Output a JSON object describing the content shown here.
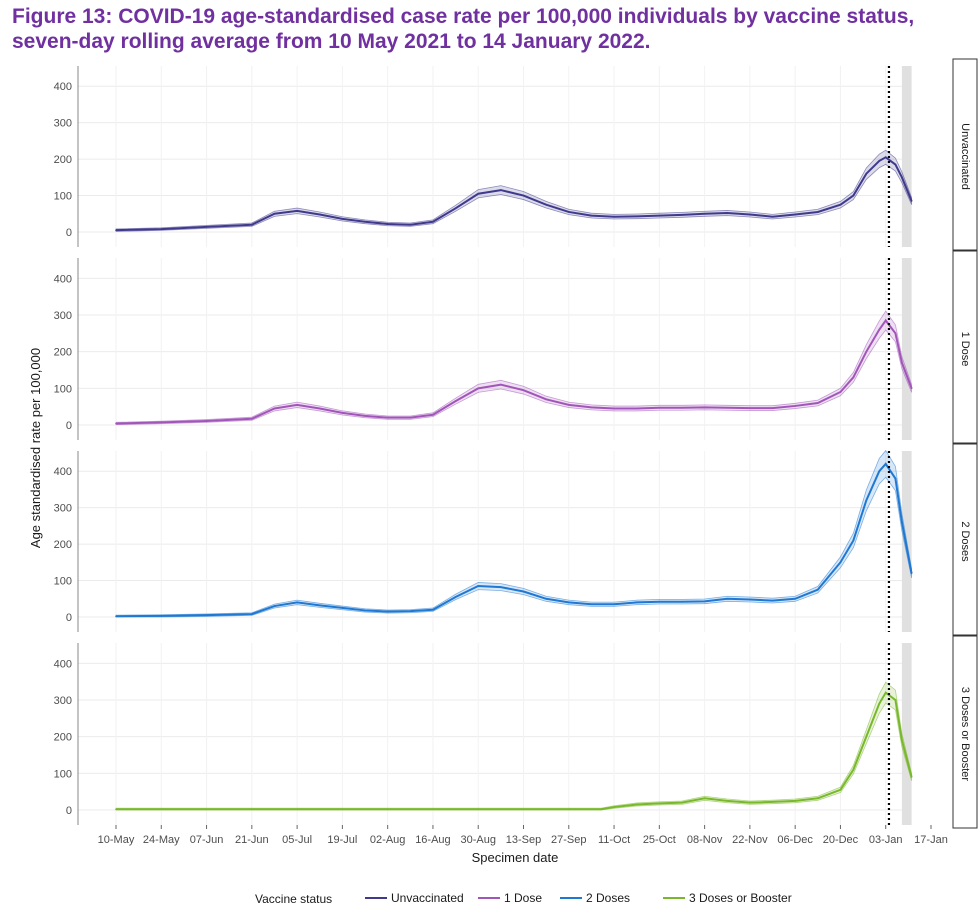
{
  "figure": {
    "title": "Figure 13: COVID-19 age-standardised case rate per 100,000 individuals by vaccine status, seven-day rolling average from 10 May 2021 to 14 January 2022."
  },
  "chart_data": {
    "type": "line",
    "title": "",
    "xlabel": "Specimen date",
    "ylabel": "Age standardised rate per 100,000",
    "x_ticks": [
      "10-May",
      "24-May",
      "07-Jun",
      "21-Jun",
      "05-Jul",
      "19-Jul",
      "02-Aug",
      "16-Aug",
      "30-Aug",
      "13-Sep",
      "27-Sep",
      "11-Oct",
      "25-Oct",
      "08-Nov",
      "22-Nov",
      "06-Dec",
      "20-Dec",
      "03-Jan",
      "17-Jan"
    ],
    "x_range": [
      "2021-05-10",
      "2022-01-17"
    ],
    "y_ticks": [
      0,
      100,
      200,
      300,
      400
    ],
    "ylim": [
      0,
      450
    ],
    "facet_layout": "vertical",
    "reference_line": {
      "date": "2022-01-04",
      "style": "dotted",
      "color": "#000000"
    },
    "shaded_band": {
      "from": "2022-01-08",
      "to": "2022-01-11",
      "color": "#e0e0e0"
    },
    "legend": {
      "title": "Vaccine status",
      "position": "bottom"
    },
    "series": [
      {
        "name": "Unvaccinated",
        "color": "#3f3a8c",
        "x": [
          "2021-05-10",
          "2021-05-24",
          "2021-06-07",
          "2021-06-21",
          "2021-06-28",
          "2021-07-05",
          "2021-07-12",
          "2021-07-19",
          "2021-07-26",
          "2021-08-02",
          "2021-08-09",
          "2021-08-16",
          "2021-08-23",
          "2021-08-30",
          "2021-09-06",
          "2021-09-13",
          "2021-09-20",
          "2021-09-27",
          "2021-10-04",
          "2021-10-11",
          "2021-10-18",
          "2021-10-25",
          "2021-11-01",
          "2021-11-08",
          "2021-11-15",
          "2021-11-22",
          "2021-11-29",
          "2021-12-06",
          "2021-12-13",
          "2021-12-20",
          "2021-12-24",
          "2021-12-28",
          "2022-01-01",
          "2022-01-03",
          "2022-01-06",
          "2022-01-08",
          "2022-01-11"
        ],
        "y": [
          5,
          8,
          14,
          20,
          50,
          58,
          48,
          36,
          28,
          22,
          20,
          28,
          65,
          105,
          115,
          100,
          75,
          55,
          45,
          42,
          43,
          45,
          47,
          50,
          52,
          48,
          42,
          48,
          55,
          75,
          100,
          160,
          195,
          205,
          185,
          150,
          85
        ]
      },
      {
        "name": "1 Dose",
        "color": "#a155b9",
        "x": [
          "2021-05-10",
          "2021-05-24",
          "2021-06-07",
          "2021-06-21",
          "2021-06-28",
          "2021-07-05",
          "2021-07-12",
          "2021-07-19",
          "2021-07-26",
          "2021-08-02",
          "2021-08-09",
          "2021-08-16",
          "2021-08-23",
          "2021-08-30",
          "2021-09-06",
          "2021-09-13",
          "2021-09-20",
          "2021-09-27",
          "2021-10-04",
          "2021-10-11",
          "2021-10-18",
          "2021-10-25",
          "2021-11-01",
          "2021-11-08",
          "2021-11-15",
          "2021-11-22",
          "2021-11-29",
          "2021-12-06",
          "2021-12-13",
          "2021-12-20",
          "2021-12-24",
          "2021-12-28",
          "2022-01-01",
          "2022-01-03",
          "2022-01-06",
          "2022-01-08",
          "2022-01-11"
        ],
        "y": [
          4,
          7,
          11,
          17,
          45,
          55,
          45,
          33,
          25,
          20,
          20,
          28,
          65,
          100,
          110,
          95,
          70,
          55,
          48,
          45,
          45,
          47,
          47,
          48,
          47,
          46,
          46,
          52,
          60,
          90,
          130,
          200,
          260,
          285,
          250,
          170,
          100
        ]
      },
      {
        "name": "2 Doses",
        "color": "#1f78d1",
        "x": [
          "2021-05-10",
          "2021-05-24",
          "2021-06-07",
          "2021-06-21",
          "2021-06-28",
          "2021-07-05",
          "2021-07-12",
          "2021-07-19",
          "2021-07-26",
          "2021-08-02",
          "2021-08-09",
          "2021-08-16",
          "2021-08-23",
          "2021-08-30",
          "2021-09-06",
          "2021-09-13",
          "2021-09-20",
          "2021-09-27",
          "2021-10-04",
          "2021-10-11",
          "2021-10-18",
          "2021-10-25",
          "2021-11-01",
          "2021-11-08",
          "2021-11-15",
          "2021-11-22",
          "2021-11-29",
          "2021-12-06",
          "2021-12-13",
          "2021-12-20",
          "2021-12-24",
          "2021-12-28",
          "2022-01-01",
          "2022-01-03",
          "2022-01-06",
          "2022-01-08",
          "2022-01-11"
        ],
        "y": [
          2,
          3,
          5,
          8,
          30,
          40,
          32,
          25,
          18,
          15,
          16,
          20,
          55,
          85,
          82,
          70,
          50,
          40,
          35,
          35,
          40,
          42,
          42,
          43,
          50,
          48,
          45,
          50,
          75,
          150,
          210,
          320,
          400,
          420,
          380,
          260,
          120
        ]
      },
      {
        "name": "3 Doses or Booster",
        "color": "#78b82a",
        "x": [
          "2021-05-10",
          "2021-06-07",
          "2021-07-05",
          "2021-08-02",
          "2021-08-30",
          "2021-09-27",
          "2021-10-07",
          "2021-10-11",
          "2021-10-18",
          "2021-10-25",
          "2021-11-01",
          "2021-11-08",
          "2021-11-15",
          "2021-11-22",
          "2021-11-29",
          "2021-12-06",
          "2021-12-13",
          "2021-12-20",
          "2021-12-24",
          "2021-12-28",
          "2022-01-01",
          "2022-01-03",
          "2022-01-06",
          "2022-01-08",
          "2022-01-11"
        ],
        "y": [
          2,
          2,
          2,
          2,
          2,
          2,
          2,
          8,
          15,
          18,
          20,
          32,
          25,
          20,
          22,
          25,
          32,
          55,
          110,
          200,
          290,
          320,
          300,
          190,
          90
        ]
      }
    ]
  }
}
